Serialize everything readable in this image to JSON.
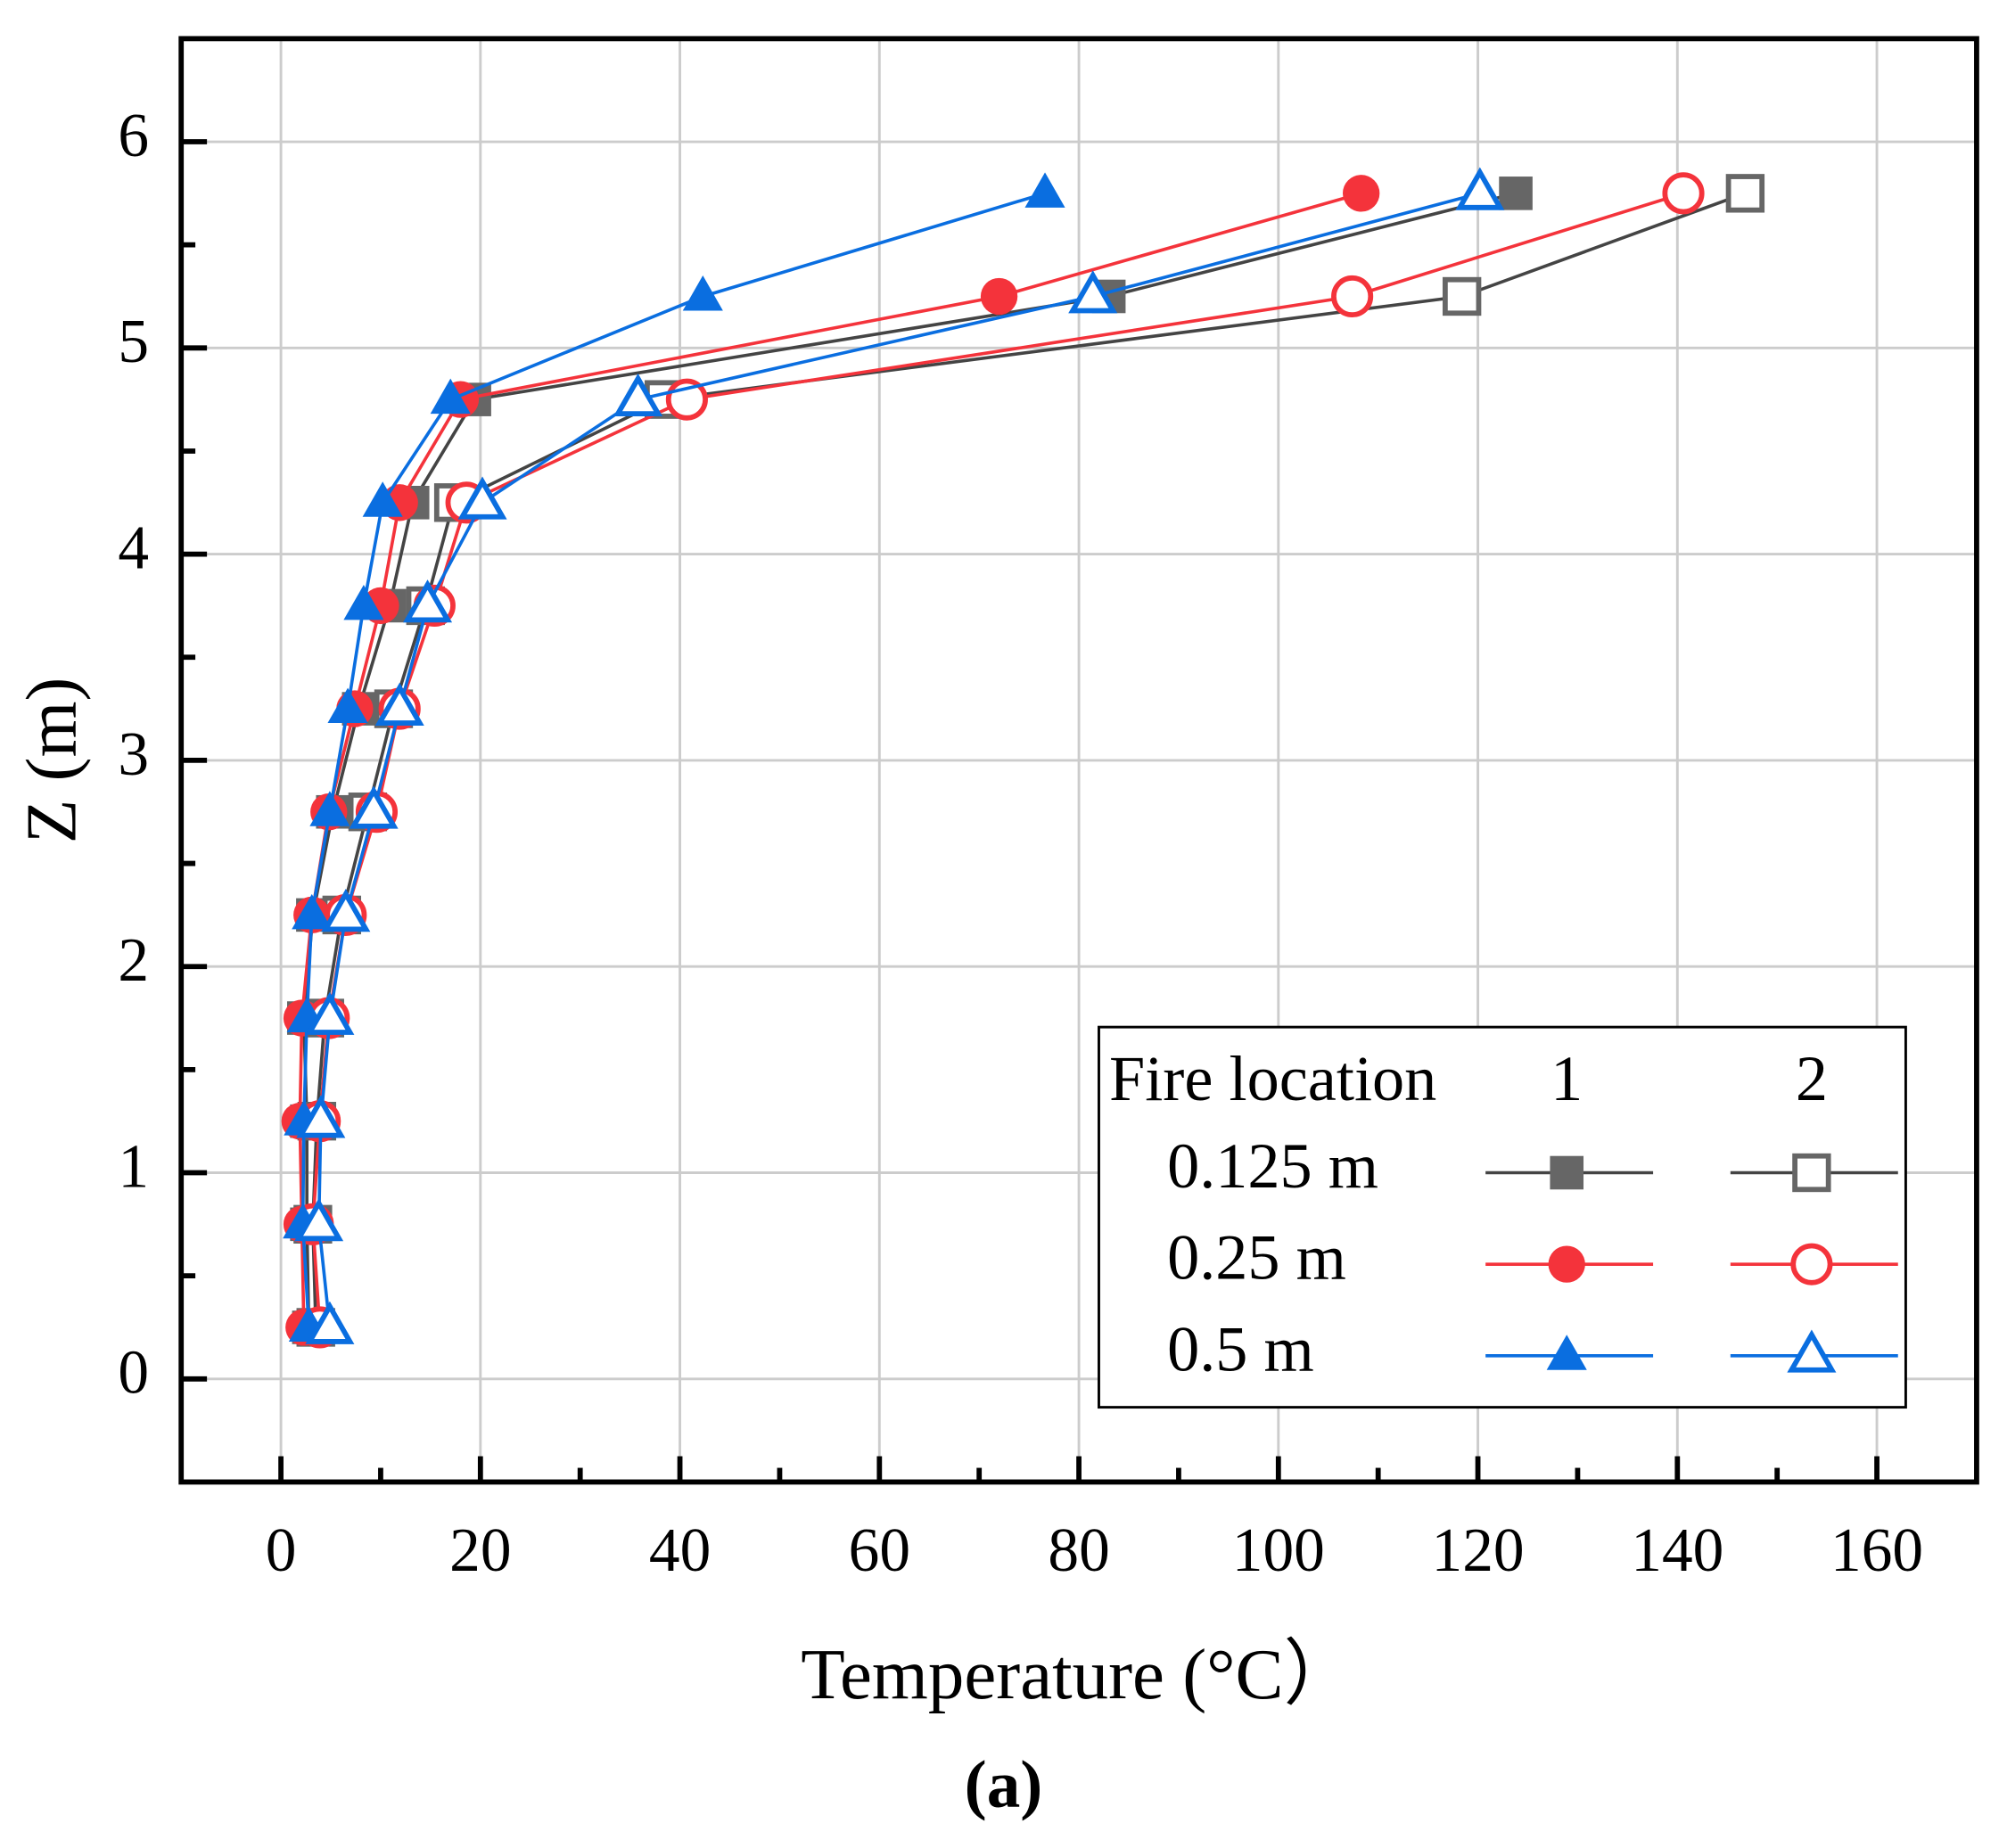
{
  "chart_data": {
    "type": "line",
    "x_label": "Temperature (°C）",
    "y_label": "Z (m)",
    "caption": "(a)",
    "xlim": [
      -10,
      170
    ],
    "ylim": [
      -0.5,
      6.5
    ],
    "xticks": [
      0,
      20,
      40,
      60,
      80,
      100,
      120,
      140,
      160
    ],
    "yticks": [
      0,
      1,
      2,
      3,
      4,
      5,
      6
    ],
    "xticks_minor": [
      10,
      30,
      50,
      70,
      90,
      110,
      130,
      150
    ],
    "yticks_minor": [
      0.5,
      1.5,
      2.5,
      3.5,
      4.5,
      5.5
    ],
    "grid": true,
    "y": [
      0.25,
      0.75,
      1.25,
      1.75,
      2.25,
      2.75,
      3.25,
      3.75,
      4.25,
      4.75,
      5.25,
      5.75
    ],
    "legend": {
      "title": "Fire location",
      "columns": [
        "1",
        "2"
      ],
      "rows": [
        "0.125 m",
        "0.25 m",
        "0.5 m"
      ],
      "position": "lower right"
    },
    "series": [
      {
        "marker": "square",
        "filled": true,
        "color": "#666666",
        "line_color": "#444444",
        "x": [
          2.8,
          2.6,
          2.6,
          2.3,
          3.2,
          5.2,
          7.8,
          10.9,
          13.2,
          19.4,
          83,
          123.8
        ]
      },
      {
        "marker": "square",
        "filled": false,
        "color": "#666666",
        "line_color": "#444444",
        "x": [
          3.5,
          3.2,
          3.6,
          4.4,
          6.1,
          8.7,
          11.3,
          14.5,
          17.3,
          38.4,
          118.4,
          146.8
        ]
      },
      {
        "marker": "circle",
        "filled": true,
        "color": "#f4333b",
        "line_color": "#f4333b",
        "x": [
          2.3,
          2.1,
          1.9,
          2.1,
          3.1,
          4.8,
          7.4,
          10,
          11.9,
          18,
          72,
          108.3
        ]
      },
      {
        "marker": "circle",
        "filled": false,
        "color": "#f4333b",
        "line_color": "#f4333b",
        "x": [
          3.9,
          3.2,
          3.9,
          4.8,
          6.5,
          9.6,
          11.9,
          15.4,
          18.6,
          40.7,
          107.4,
          140.6
        ]
      },
      {
        "marker": "triangle",
        "filled": true,
        "color": "#0a6ee0",
        "line_color": "#0a6ee0",
        "x": [
          2.8,
          2.2,
          2.3,
          2.6,
          3.1,
          4.9,
          6.7,
          8.3,
          10.2,
          17,
          42.3,
          76.6
        ]
      },
      {
        "marker": "triangle",
        "filled": false,
        "color": "#0a6ee0",
        "line_color": "#0a6ee0",
        "x": [
          4.9,
          3.8,
          4,
          4.9,
          6.5,
          9.3,
          11.9,
          14.7,
          20.2,
          35.8,
          81.4,
          120.2
        ]
      }
    ]
  }
}
